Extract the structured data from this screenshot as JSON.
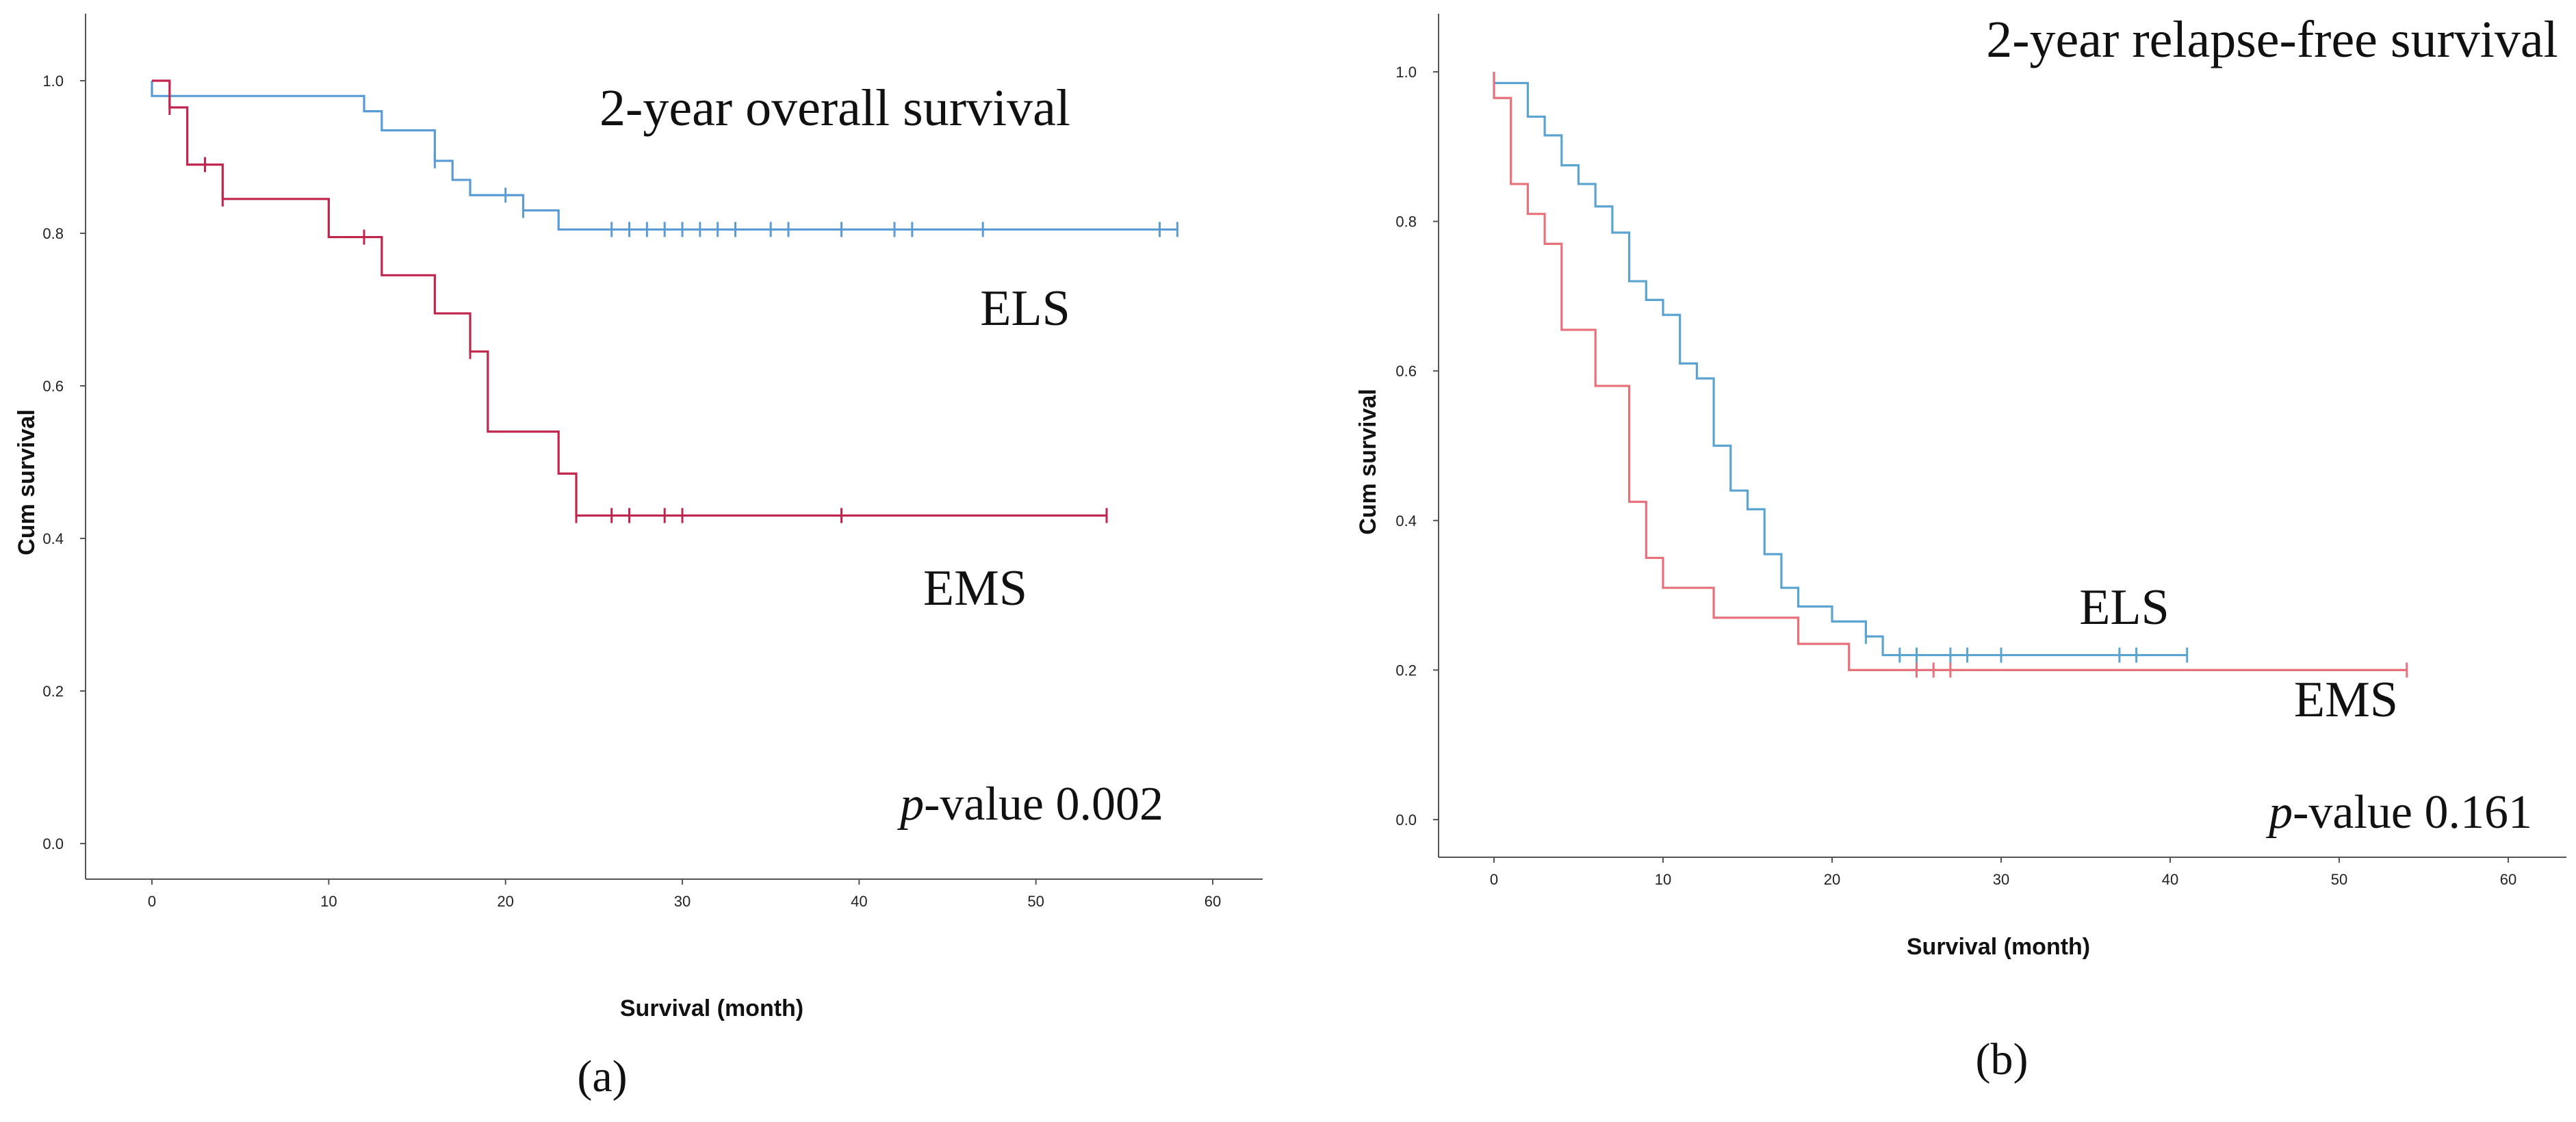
{
  "chart_data": [
    {
      "panel": "(a)",
      "type": "line",
      "title": "2-year overall survival",
      "xlabel": "Survival (month)",
      "ylabel": "Cum survival",
      "xlim": [
        0,
        60
      ],
      "ylim": [
        0,
        1
      ],
      "x_ticks": [
        "0",
        "10",
        "20",
        "30",
        "40",
        "50",
        "60"
      ],
      "y_ticks": [
        "0.0",
        "0.2",
        "0.4",
        "0.6",
        "0.8",
        "1.0"
      ],
      "pvalue_label": "p",
      "pvalue_text": "-value 0.002",
      "grid": false,
      "series": [
        {
          "name": "ELS",
          "color": "#5b9bd5",
          "steps": [
            [
              0,
              1.0
            ],
            [
              0,
              0.98
            ],
            [
              12,
              0.96
            ],
            [
              13,
              0.935
            ],
            [
              16,
              0.895
            ],
            [
              17,
              0.87
            ],
            [
              18,
              0.85
            ],
            [
              21,
              0.83
            ],
            [
              23,
              0.805
            ],
            [
              58,
              0.805
            ]
          ],
          "censored": [
            [
              16,
              0.895
            ],
            [
              20,
              0.85
            ],
            [
              21,
              0.83
            ],
            [
              26,
              0.805
            ],
            [
              27,
              0.805
            ],
            [
              28,
              0.805
            ],
            [
              29,
              0.805
            ],
            [
              30,
              0.805
            ],
            [
              31,
              0.805
            ],
            [
              32,
              0.805
            ],
            [
              33,
              0.805
            ],
            [
              35,
              0.805
            ],
            [
              36,
              0.805
            ],
            [
              39,
              0.805
            ],
            [
              42,
              0.805
            ],
            [
              43,
              0.805
            ],
            [
              47,
              0.805
            ],
            [
              57,
              0.805
            ],
            [
              58,
              0.805
            ]
          ]
        },
        {
          "name": "EMS",
          "color": "#c0254d",
          "steps": [
            [
              0,
              1.0
            ],
            [
              1,
              0.965
            ],
            [
              2,
              0.89
            ],
            [
              4,
              0.845
            ],
            [
              10,
              0.795
            ],
            [
              13,
              0.745
            ],
            [
              16,
              0.695
            ],
            [
              18,
              0.645
            ],
            [
              19,
              0.54
            ],
            [
              23,
              0.485
            ],
            [
              24,
              0.43
            ],
            [
              54,
              0.43
            ]
          ],
          "censored": [
            [
              1,
              0.965
            ],
            [
              3,
              0.89
            ],
            [
              4,
              0.845
            ],
            [
              12,
              0.795
            ],
            [
              18,
              0.645
            ],
            [
              24,
              0.43
            ],
            [
              26,
              0.43
            ],
            [
              27,
              0.43
            ],
            [
              29,
              0.43
            ],
            [
              30,
              0.43
            ],
            [
              39,
              0.43
            ],
            [
              54,
              0.43
            ]
          ]
        }
      ]
    },
    {
      "panel": "(b)",
      "type": "line",
      "title": "2-year relapse-free survival",
      "xlabel": "Survival (month)",
      "ylabel": "Cum survival",
      "xlim": [
        0,
        60
      ],
      "ylim": [
        0,
        1
      ],
      "x_ticks": [
        "0",
        "10",
        "20",
        "30",
        "40",
        "50",
        "60"
      ],
      "y_ticks": [
        "0.0",
        "0.2",
        "0.4",
        "0.6",
        "0.8",
        "1.0"
      ],
      "pvalue_label": "p",
      "pvalue_text": "-value 0.161",
      "grid": false,
      "series": [
        {
          "name": "ELS",
          "color": "#5ba3d0",
          "steps": [
            [
              0,
              1.0
            ],
            [
              0,
              0.985
            ],
            [
              2,
              0.94
            ],
            [
              3,
              0.915
            ],
            [
              4,
              0.875
            ],
            [
              5,
              0.85
            ],
            [
              6,
              0.82
            ],
            [
              7,
              0.785
            ],
            [
              8,
              0.72
            ],
            [
              9,
              0.695
            ],
            [
              10,
              0.675
            ],
            [
              11,
              0.61
            ],
            [
              12,
              0.59
            ],
            [
              13,
              0.5
            ],
            [
              14,
              0.44
            ],
            [
              15,
              0.415
            ],
            [
              16,
              0.355
            ],
            [
              17,
              0.31
            ],
            [
              18,
              0.285
            ],
            [
              20,
              0.265
            ],
            [
              22,
              0.245
            ],
            [
              23,
              0.22
            ],
            [
              41,
              0.22
            ]
          ],
          "censored": [
            [
              22,
              0.245
            ],
            [
              24,
              0.22
            ],
            [
              25,
              0.22
            ],
            [
              27,
              0.22
            ],
            [
              28,
              0.22
            ],
            [
              30,
              0.22
            ],
            [
              37,
              0.22
            ],
            [
              38,
              0.22
            ],
            [
              41,
              0.22
            ]
          ]
        },
        {
          "name": "EMS",
          "color": "#e8707a",
          "steps": [
            [
              0,
              1.0
            ],
            [
              0,
              0.965
            ],
            [
              1,
              0.85
            ],
            [
              2,
              0.81
            ],
            [
              3,
              0.77
            ],
            [
              4,
              0.655
            ],
            [
              6,
              0.58
            ],
            [
              8,
              0.425
            ],
            [
              9,
              0.35
            ],
            [
              10,
              0.31
            ],
            [
              13,
              0.27
            ],
            [
              18,
              0.235
            ],
            [
              21,
              0.2
            ],
            [
              54,
              0.2
            ]
          ],
          "censored": [
            [
              25,
              0.2
            ],
            [
              26,
              0.2
            ],
            [
              27,
              0.2
            ],
            [
              54,
              0.2
            ]
          ]
        }
      ]
    }
  ]
}
